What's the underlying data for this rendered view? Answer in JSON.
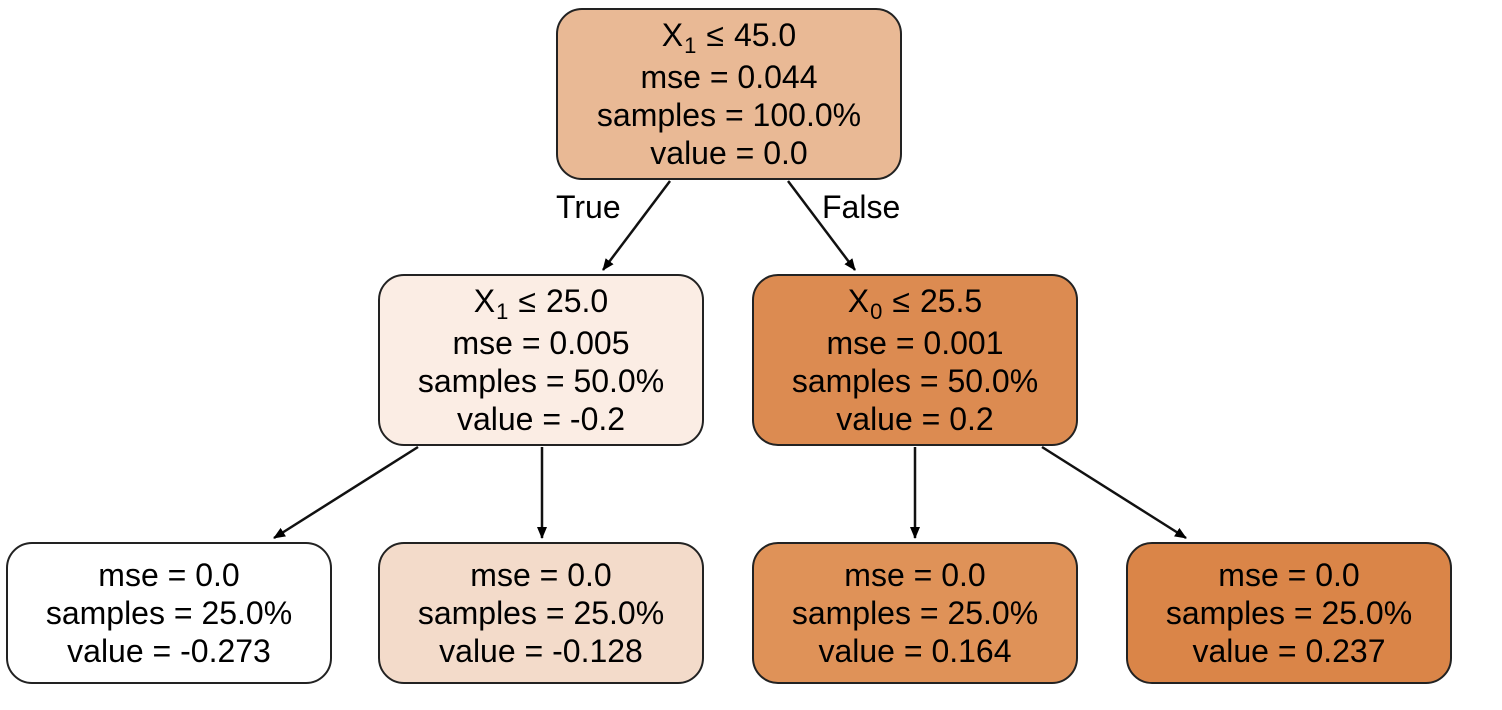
{
  "tree": {
    "nodes": [
      {
        "id": 0,
        "feature": "X",
        "feature_index": "1",
        "op": "≤",
        "threshold": "45.0",
        "mse": "mse = 0.044",
        "samples": "samples = 100.0%",
        "value": "value = 0.0",
        "fill": "#e9b995"
      },
      {
        "id": 1,
        "feature": "X",
        "feature_index": "1",
        "op": "≤",
        "threshold": "25.0",
        "mse": "mse = 0.005",
        "samples": "samples = 50.0%",
        "value": "value = -0.2",
        "fill": "#fbede4"
      },
      {
        "id": 2,
        "feature": "X",
        "feature_index": "0",
        "op": "≤",
        "threshold": "25.5",
        "mse": "mse = 0.001",
        "samples": "samples = 50.0%",
        "value": "value = 0.2",
        "fill": "#dc8b51"
      },
      {
        "id": 3,
        "mse": "mse = 0.0",
        "samples": "samples = 25.0%",
        "value": "value = -0.273",
        "fill": "#ffffff"
      },
      {
        "id": 4,
        "mse": "mse = 0.0",
        "samples": "samples = 25.0%",
        "value": "value = -0.128",
        "fill": "#f3dbca"
      },
      {
        "id": 5,
        "mse": "mse = 0.0",
        "samples": "samples = 25.0%",
        "value": "value = 0.164",
        "fill": "#df9258"
      },
      {
        "id": 6,
        "mse": "mse = 0.0",
        "samples": "samples = 25.0%",
        "value": "value = 0.237",
        "fill": "#da8548"
      }
    ],
    "edges": [
      {
        "from": 0,
        "to": 1,
        "label": "True"
      },
      {
        "from": 0,
        "to": 2,
        "label": "False"
      },
      {
        "from": 1,
        "to": 3
      },
      {
        "from": 1,
        "to": 4
      },
      {
        "from": 2,
        "to": 5
      },
      {
        "from": 2,
        "to": 6
      }
    ],
    "colors": {
      "stroke": "#222222",
      "arrow": "#000000"
    }
  }
}
